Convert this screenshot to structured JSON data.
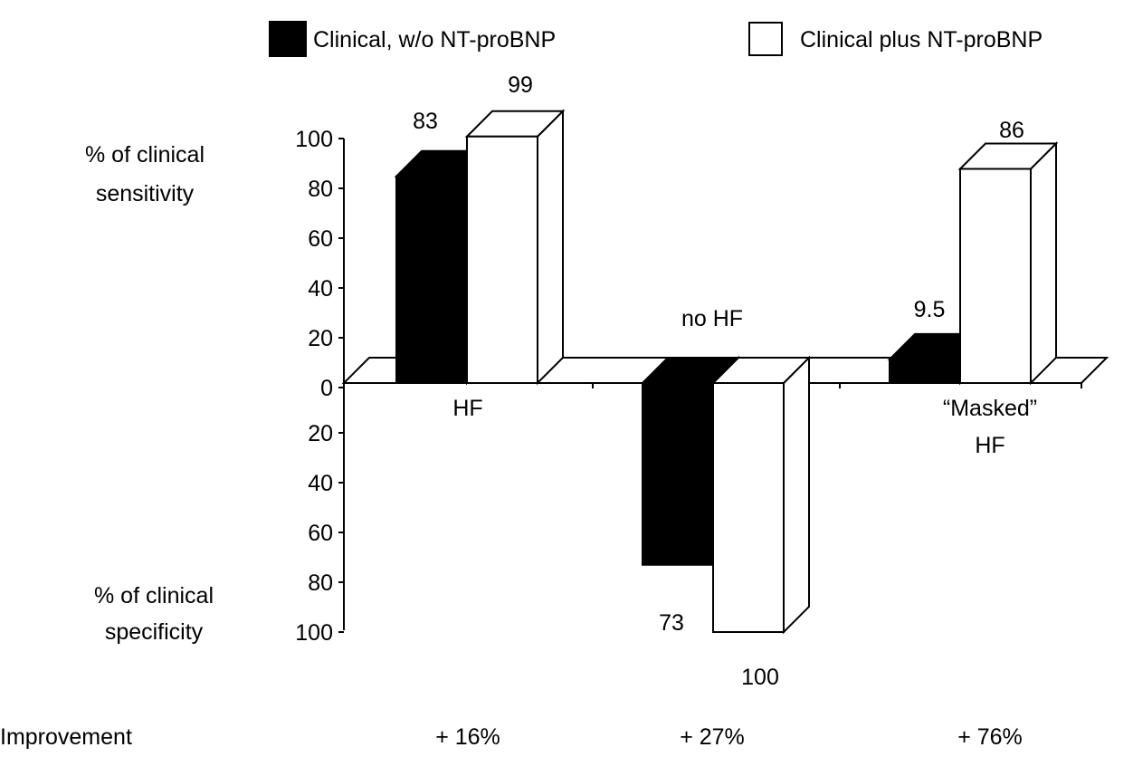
{
  "chart_data": {
    "type": "bar",
    "categories": [
      "HF",
      "no HF",
      "“Masked” HF"
    ],
    "category_labels": [
      {
        "lines": [
          "HF"
        ]
      },
      {
        "lines": [
          "no HF"
        ]
      },
      {
        "lines": [
          "“Masked”",
          "HF"
        ]
      }
    ],
    "series": [
      {
        "name": "Clinical, w/o NT-proBNP",
        "values": [
          83,
          73,
          9.5
        ],
        "value_labels": [
          "83",
          "73",
          "9.5"
        ],
        "color": "#000000"
      },
      {
        "name": "Clinical plus NT-proBNP",
        "values": [
          99,
          100,
          86
        ],
        "value_labels": [
          "99",
          "100",
          "86"
        ],
        "color": "#ffffff"
      }
    ],
    "measure": [
      "sensitivity",
      "specificity",
      "sensitivity"
    ],
    "y_labels": {
      "sensitivity": [
        "% of clinical",
        "sensitivity"
      ],
      "specificity": [
        "% of clinical",
        "specificity"
      ]
    },
    "y_ticks_up": [
      "100",
      "80",
      "60",
      "40",
      "20",
      "0"
    ],
    "y_ticks_down": [
      "20",
      "40",
      "60",
      "80",
      "100"
    ],
    "ylim": [
      -100,
      100
    ],
    "improvement": {
      "label": "Improvement",
      "values": [
        "+ 16%",
        "+ 27%",
        "+ 76%"
      ]
    },
    "legend_position": "top",
    "grid": false
  }
}
